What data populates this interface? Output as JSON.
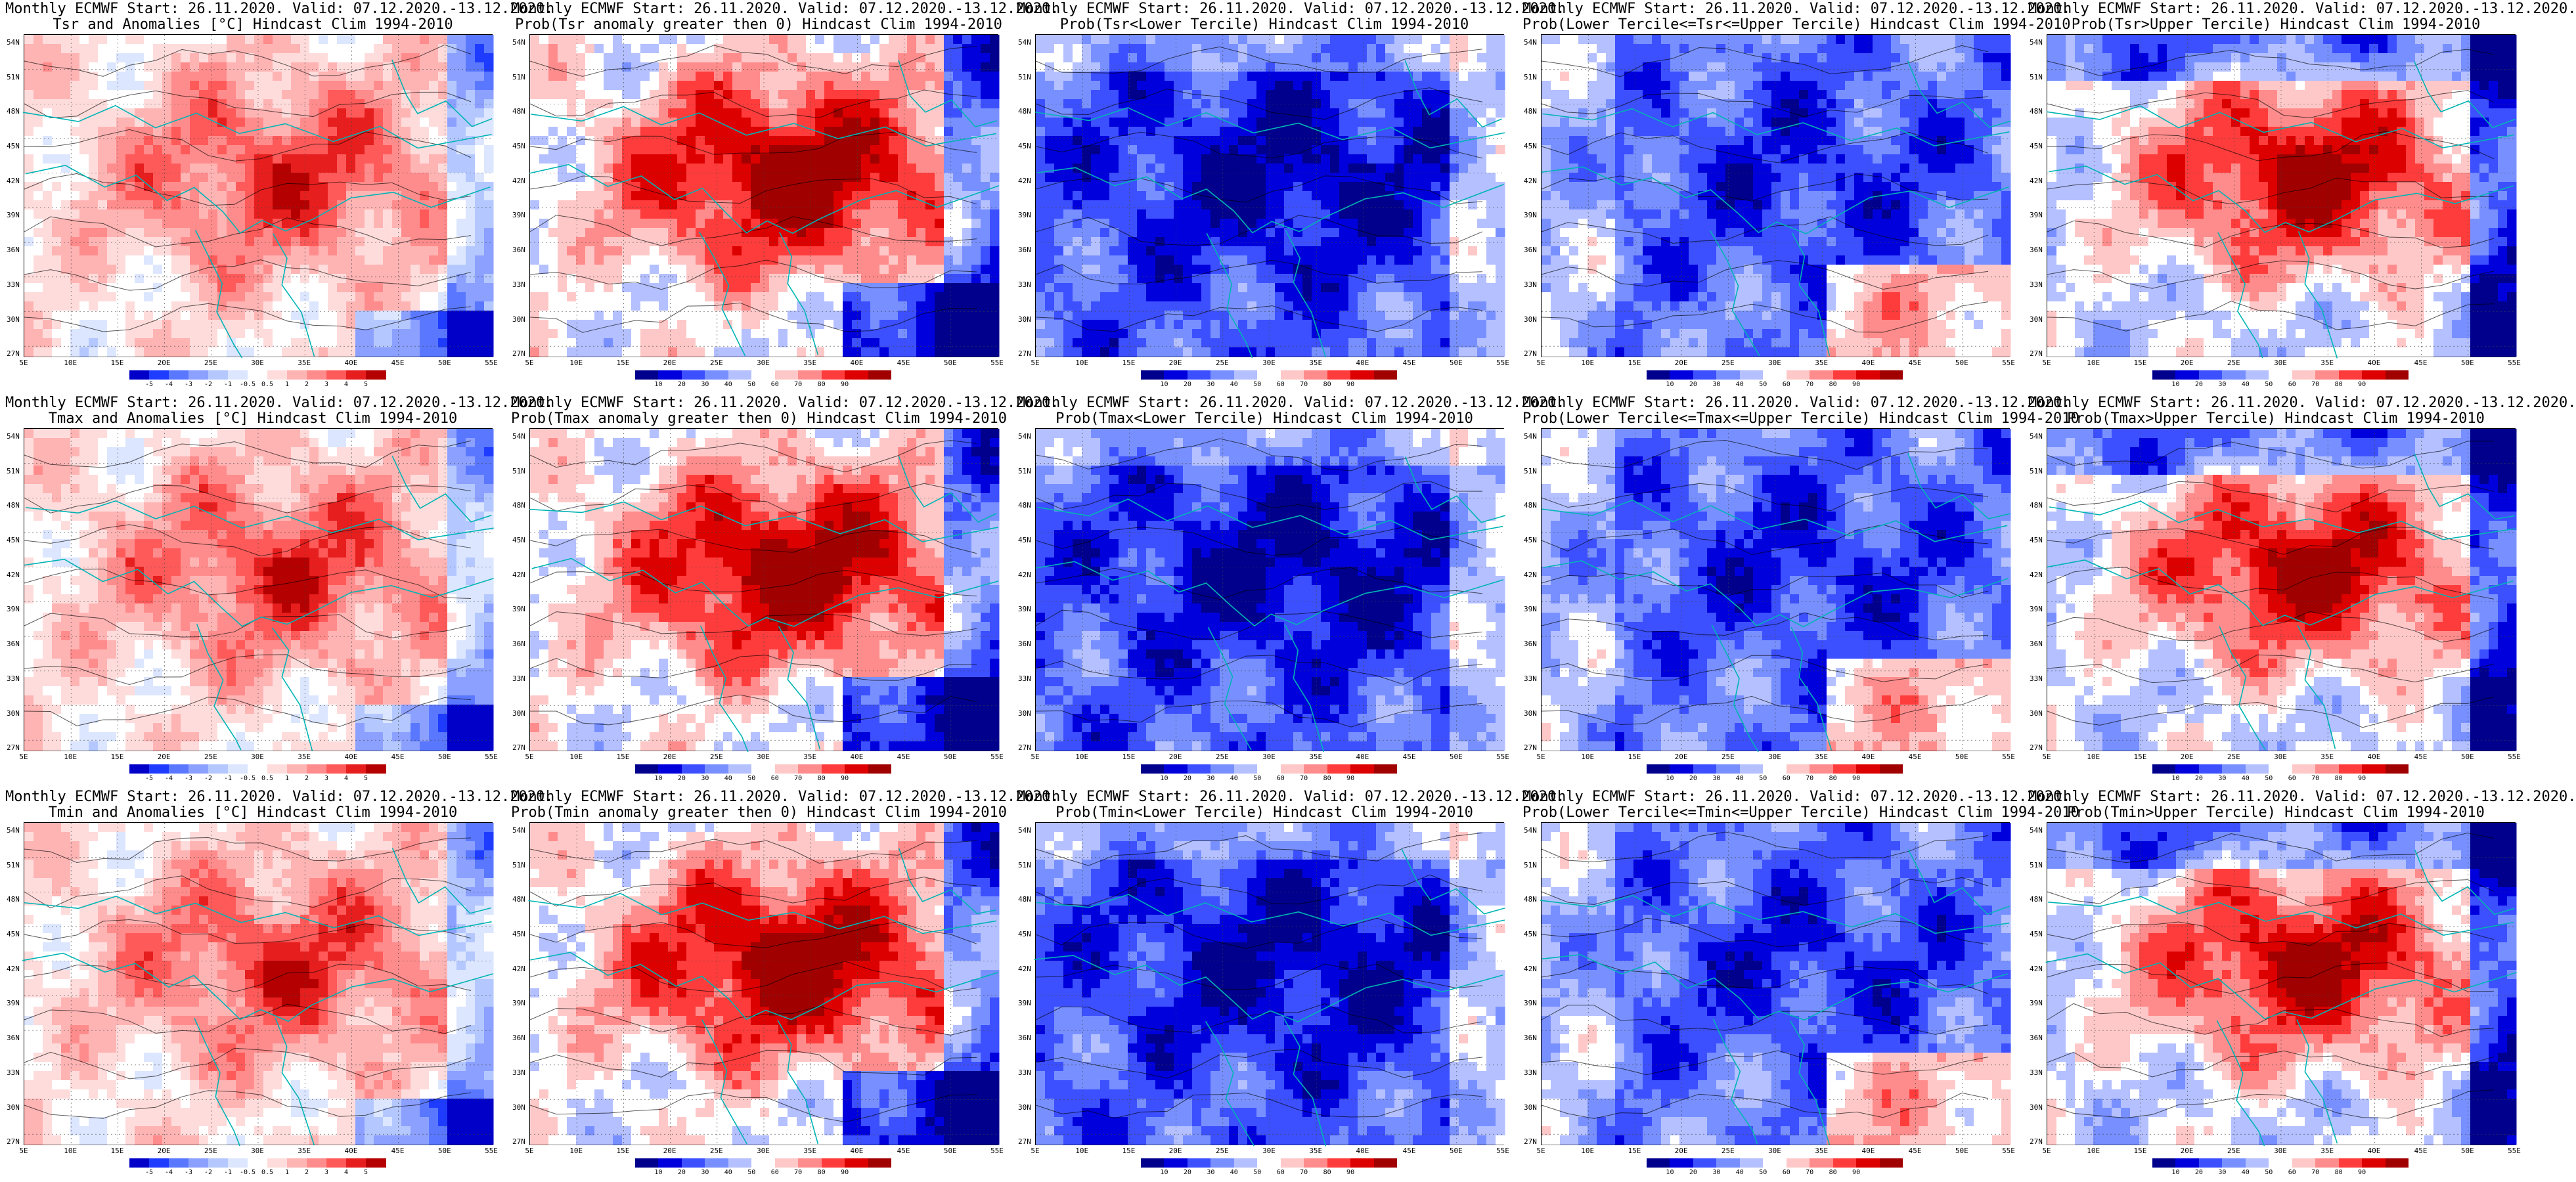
{
  "colors": {
    "anomaly_scale": [
      "#0000c8",
      "#1e3cff",
      "#5a78ff",
      "#8ca0ff",
      "#b4c8ff",
      "#dce6ff",
      "#ffffff",
      "#ffdcdc",
      "#ffb4b4",
      "#ff8c8c",
      "#ff5a5a",
      "#e61e1e",
      "#b40000"
    ],
    "prob_scale": [
      "#00008c",
      "#0000dc",
      "#3c50ff",
      "#7890ff",
      "#b4c0ff",
      "#ffffff",
      "#ffc8c8",
      "#ff8c8c",
      "#ff3c3c",
      "#dc0000",
      "#a00000"
    ],
    "coast": "#00b4b4",
    "contour": "#000000"
  },
  "lat_labels": [
    "54N",
    "51N",
    "48N",
    "45N",
    "42N",
    "39N",
    "36N",
    "33N",
    "30N",
    "27N"
  ],
  "lon_labels": [
    "5E",
    "10E",
    "15E",
    "20E",
    "25E",
    "30E",
    "35E",
    "40E",
    "45E",
    "50E",
    "55E"
  ],
  "anomaly_ticks": [
    "-5",
    "-4",
    "-3",
    "-2",
    "-1",
    "-0.5",
    "0.5",
    "1",
    "2",
    "3",
    "4",
    "5"
  ],
  "prob_ticks": [
    "10",
    "20",
    "30",
    "40",
    "50",
    "60",
    "70",
    "80",
    "90"
  ],
  "panels": [
    {
      "line1": "Monthly ECMWF Start: 26.11.2020. Valid: 07.12.2020.-13.12.2020.",
      "line2": "Tsr and Anomalies [°C] Hindcast Clim 1994-2010",
      "kind": "anomaly",
      "pattern": "warm"
    },
    {
      "line1": "Monthly ECMWF Start: 26.11.2020. Valid: 07.12.2020.-13.12.2020.",
      "line2": "Prob(Tsr anomaly greater then 0) Hindcast Clim 1994-2010",
      "kind": "prob",
      "pattern": "high"
    },
    {
      "line1": "Monthly ECMWF Start: 26.11.2020. Valid: 07.12.2020.-13.12.2020.",
      "line2": "Prob(Tsr<Lower Tercile) Hindcast Clim 1994-2010",
      "kind": "prob",
      "pattern": "low"
    },
    {
      "line1": "Monthly ECMWF Start: 26.11.2020. Valid: 07.12.2020.-13.12.2020.",
      "line2": "Prob(Lower Tercile<=Tsr<=Upper Tercile) Hindcast Clim 1994-2010",
      "kind": "prob",
      "pattern": "mid"
    },
    {
      "line1": "Monthly ECMWF Start: 26.11.2020. Valid: 07.12.2020.-13.12.2020.",
      "line2": "Prob(Tsr>Upper Tercile) Hindcast Clim 1994-2010",
      "kind": "prob",
      "pattern": "upper"
    },
    {
      "line1": "Monthly ECMWF Start: 26.11.2020. Valid: 07.12.2020.-13.12.2020.",
      "line2": "Tmax and Anomalies [°C] Hindcast Clim 1994-2010",
      "kind": "anomaly",
      "pattern": "warm"
    },
    {
      "line1": "Monthly ECMWF Start: 26.11.2020. Valid: 07.12.2020.-13.12.2020.",
      "line2": "Prob(Tmax anomaly greater then 0) Hindcast Clim 1994-2010",
      "kind": "prob",
      "pattern": "high"
    },
    {
      "line1": "Monthly ECMWF Start: 26.11.2020. Valid: 07.12.2020.-13.12.2020.",
      "line2": "Prob(Tmax<Lower Tercile) Hindcast Clim 1994-2010",
      "kind": "prob",
      "pattern": "low"
    },
    {
      "line1": "Monthly ECMWF Start: 26.11.2020. Valid: 07.12.2020.-13.12.2020.",
      "line2": "Prob(Lower Tercile<=Tmax<=Upper Tercile) Hindcast Clim 1994-2010",
      "kind": "prob",
      "pattern": "mid"
    },
    {
      "line1": "Monthly ECMWF Start: 26.11.2020. Valid: 07.12.2020.-13.12.2020.",
      "line2": "Prob(Tmax>Upper Tercile) Hindcast Clim 1994-2010",
      "kind": "prob",
      "pattern": "upper"
    },
    {
      "line1": "Monthly ECMWF Start: 26.11.2020. Valid: 07.12.2020.-13.12.2020.",
      "line2": "Tmin and Anomalies [°C] Hindcast Clim 1994-2010",
      "kind": "anomaly",
      "pattern": "warm"
    },
    {
      "line1": "Monthly ECMWF Start: 26.11.2020. Valid: 07.12.2020.-13.12.2020.",
      "line2": "Prob(Tmin anomaly greater then 0) Hindcast Clim 1994-2010",
      "kind": "prob",
      "pattern": "high"
    },
    {
      "line1": "Monthly ECMWF Start: 26.11.2020. Valid: 07.12.2020.-13.12.2020.",
      "line2": "Prob(Tmin<Lower Tercile) Hindcast Clim 1994-2010",
      "kind": "prob",
      "pattern": "low"
    },
    {
      "line1": "Monthly ECMWF Start: 26.11.2020. Valid: 07.12.2020.-13.12.2020.",
      "line2": "Prob(Lower Tercile<=Tmin<=Upper Tercile) Hindcast Clim 1994-2010",
      "kind": "prob",
      "pattern": "mid"
    },
    {
      "line1": "Monthly ECMWF Start: 26.11.2020. Valid: 07.12.2020.-13.12.2020.",
      "line2": "Prob(Tmin>Upper Tercile) Hindcast Clim 1994-2010",
      "kind": "prob",
      "pattern": "upper"
    }
  ]
}
